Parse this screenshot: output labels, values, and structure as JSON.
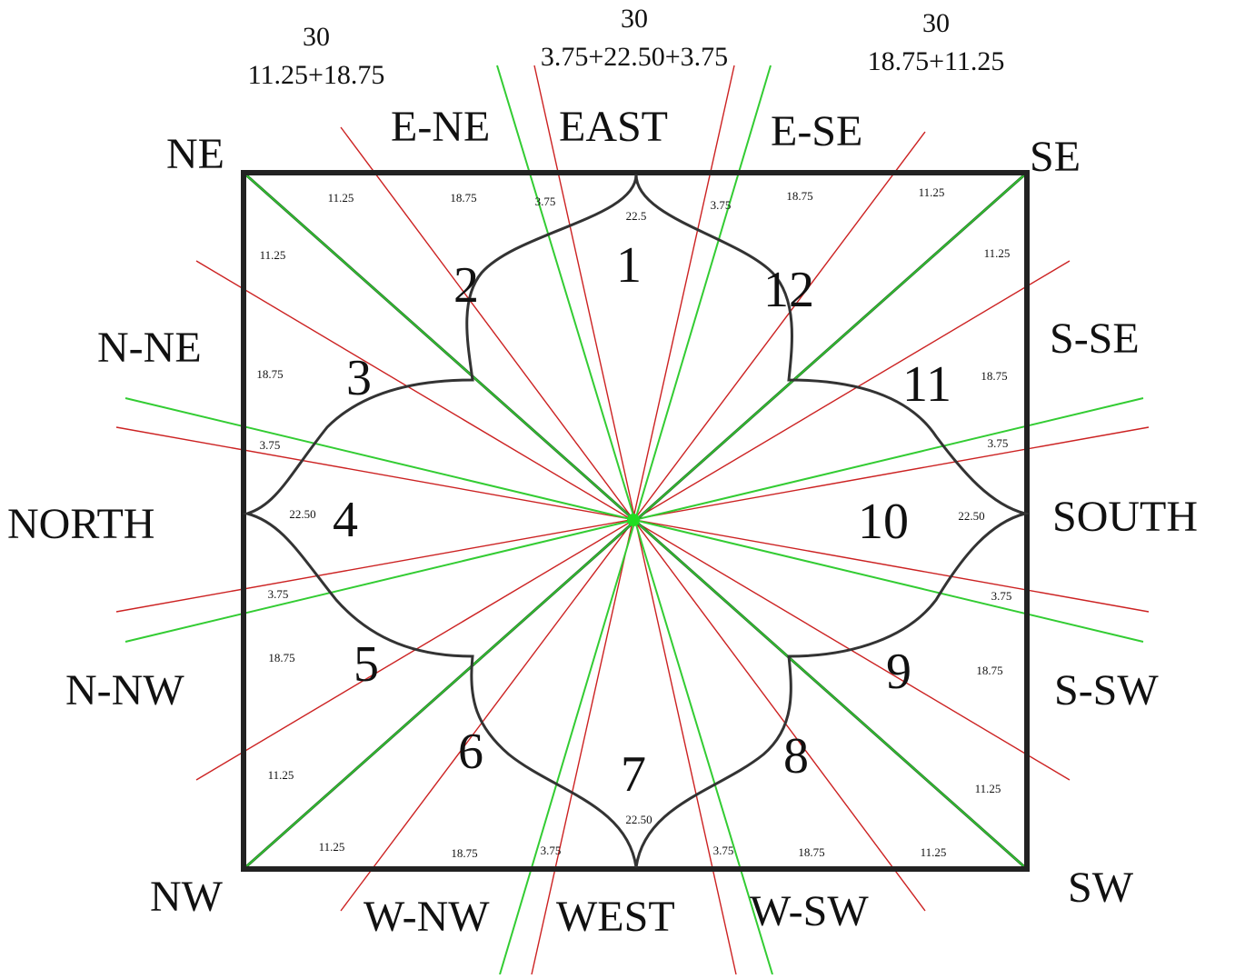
{
  "directions": {
    "ne": "NE",
    "e_ne": "E-NE",
    "east": "EAST",
    "e_se": "E-SE",
    "se": "SE",
    "n_ne": "N-NE",
    "s_se": "S-SE",
    "north": "NORTH",
    "south": "SOUTH",
    "n_nw": "N-NW",
    "s_sw": "S-SW",
    "nw": "NW",
    "w_nw": "W-NW",
    "west": "WEST",
    "w_sw": "W-SW",
    "sw": "SW"
  },
  "top_notes": {
    "left_total": "30",
    "left_split": "11.25+18.75",
    "center_total": "30",
    "center_split": "3.75+22.50+3.75",
    "right_total": "30",
    "right_split": "18.75+11.25"
  },
  "houses": [
    "1",
    "2",
    "3",
    "4",
    "5",
    "6",
    "7",
    "8",
    "9",
    "10",
    "11",
    "12"
  ],
  "degrees": {
    "top": [
      "11.25",
      "18.75",
      "3.75",
      "22.5",
      "3.75",
      "18.75",
      "11.25"
    ],
    "left": [
      "11.25",
      "18.75",
      "3.75",
      "22.50",
      "3.75",
      "18.75",
      "11.25"
    ],
    "right": [
      "11.25",
      "18.75",
      "3.75",
      "22.50",
      "3.75",
      "18.75",
      "11.25"
    ],
    "bottom": [
      "11.25",
      "18.75",
      "3.75",
      "22.50",
      "3.75",
      "18.75",
      "11.25"
    ]
  },
  "colors": {
    "frame": "#222222",
    "green_line": "#33cc33",
    "red_line": "#cc2222",
    "center": "#22dd22"
  }
}
